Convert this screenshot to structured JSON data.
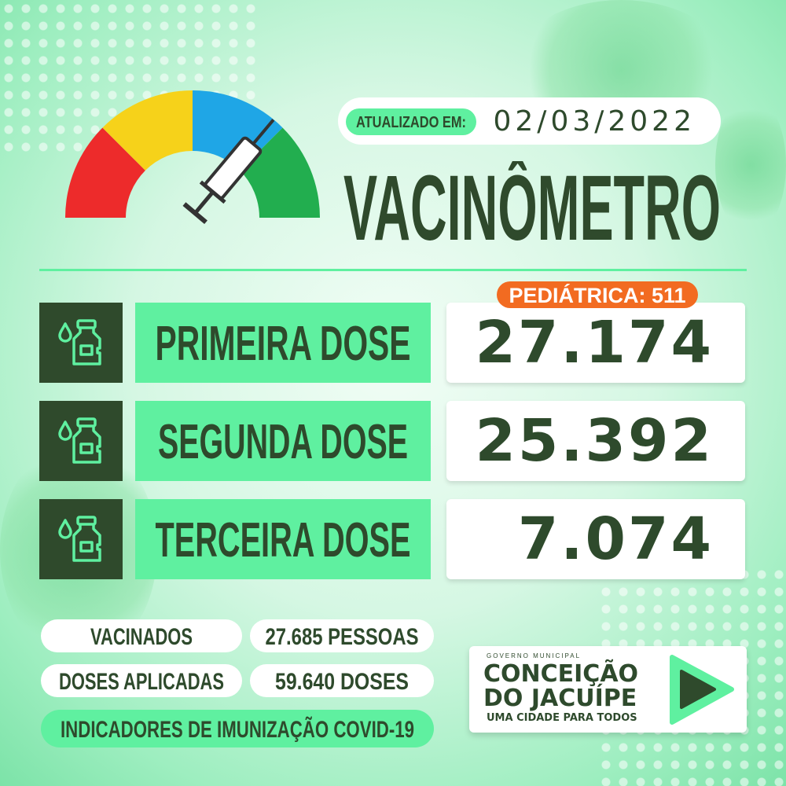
{
  "header": {
    "updated_label": "ATUALIZADO EM:",
    "date": "02/03/2022",
    "title": "VACINÔMETRO"
  },
  "gauge": {
    "colors": [
      "#ed2b2b",
      "#f6d21a",
      "#1fa6e6",
      "#22ae4f"
    ],
    "icon": "syringe-icon"
  },
  "pediatric": {
    "label": "PEDIÁTRICA: 511",
    "color": "#f26b21"
  },
  "doses": [
    {
      "label": "PRIMEIRA DOSE",
      "value": "27.174",
      "icon": "vaccine-vial-icon"
    },
    {
      "label": "SEGUNDA DOSE",
      "value": "25.392",
      "icon": "vaccine-vial-icon"
    },
    {
      "label": "TERCEIRA DOSE",
      "value": "7.074",
      "icon": "vaccine-vial-icon"
    }
  ],
  "summary": {
    "vaccinated_label": "VACINADOS",
    "vaccinated_value": "27.685 PESSOAS",
    "doses_label": "DOSES APLICADAS",
    "doses_value": "59.640 DOSES",
    "footer": "INDICADORES DE IMUNIZAÇÃO COVID-19"
  },
  "logo": {
    "top": "GOVERNO MUNICIPAL",
    "line1": "CONCEIÇÃO",
    "line2": "DO JACUÍPE",
    "tagline": "UMA CIDADE PARA TODOS",
    "icon": "play-icon"
  },
  "colors": {
    "dark_green": "#2f4a2c",
    "bright_green": "#5ff0a0",
    "orange": "#f26b21"
  }
}
